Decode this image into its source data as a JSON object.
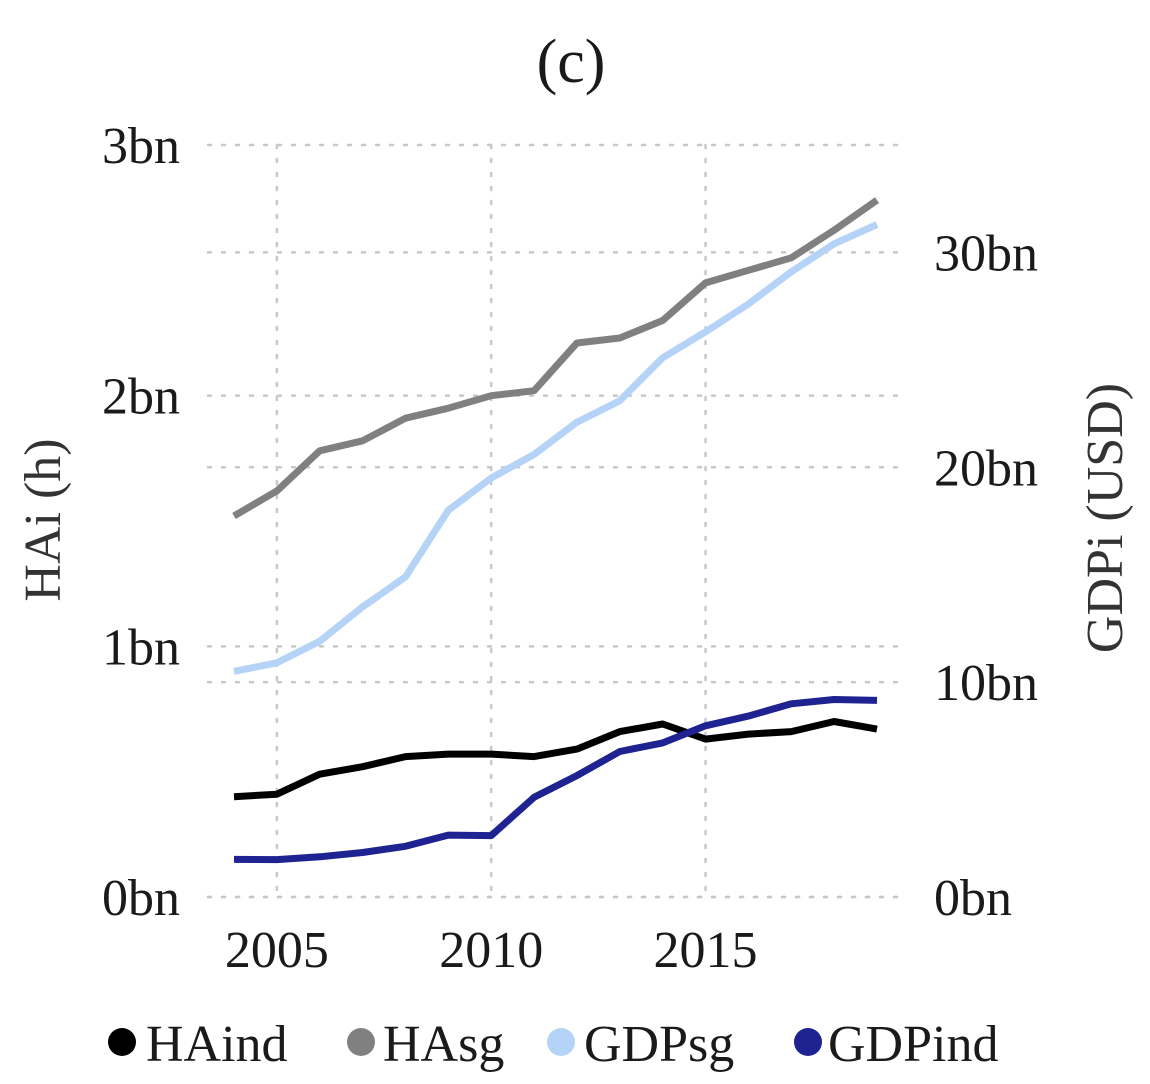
{
  "chart_data": {
    "type": "line",
    "title": "(c)",
    "x": [
      2004,
      2005,
      2006,
      2007,
      2008,
      2009,
      2010,
      2011,
      2012,
      2013,
      2014,
      2015,
      2016,
      2017,
      2018,
      2019
    ],
    "xticks": [
      2005,
      2010,
      2015
    ],
    "xtick_labels": [
      "2005",
      "2010",
      "2015"
    ],
    "xlim": [
      2003.4,
      2019.6
    ],
    "grid": true,
    "legend_position": "bottom",
    "y_left": {
      "label": "HAi (h)",
      "lim": [
        0,
        3
      ],
      "ticks": [
        0,
        1,
        2,
        3
      ],
      "tick_labels": [
        "0bn",
        "1bn",
        "2bn",
        "3bn"
      ],
      "unit": "bn"
    },
    "y_right": {
      "label": "GDPi (USD)",
      "lim": [
        0,
        35
      ],
      "ticks": [
        0,
        10,
        20,
        30
      ],
      "tick_labels": [
        "0bn",
        "10bn",
        "20bn",
        "30bn"
      ],
      "unit": "bn"
    },
    "series": [
      {
        "name": "HAind",
        "axis": "left",
        "color": "#000000",
        "values": [
          0.4,
          0.41,
          0.49,
          0.52,
          0.56,
          0.57,
          0.57,
          0.56,
          0.59,
          0.66,
          0.69,
          0.63,
          0.65,
          0.66,
          0.7,
          0.67
        ]
      },
      {
        "name": "HAsg",
        "axis": "left",
        "color": "#808080",
        "values": [
          1.52,
          1.62,
          1.78,
          1.82,
          1.91,
          1.95,
          2.0,
          2.02,
          2.21,
          2.23,
          2.3,
          2.45,
          2.5,
          2.55,
          2.66,
          2.78
        ]
      },
      {
        "name": "GDPsg",
        "axis": "right",
        "color": "#b4d3f7",
        "values": [
          10.5,
          10.9,
          11.9,
          13.5,
          14.9,
          18.0,
          19.5,
          20.6,
          22.1,
          23.1,
          25.1,
          26.3,
          27.6,
          29.1,
          30.4,
          31.3
        ]
      },
      {
        "name": "GDPind",
        "axis": "right",
        "color": "#1f2291",
        "values": [
          1.75,
          1.74,
          1.87,
          2.07,
          2.36,
          2.88,
          2.86,
          4.64,
          5.65,
          6.77,
          7.17,
          7.97,
          8.42,
          8.99,
          9.19,
          9.15
        ]
      }
    ]
  }
}
